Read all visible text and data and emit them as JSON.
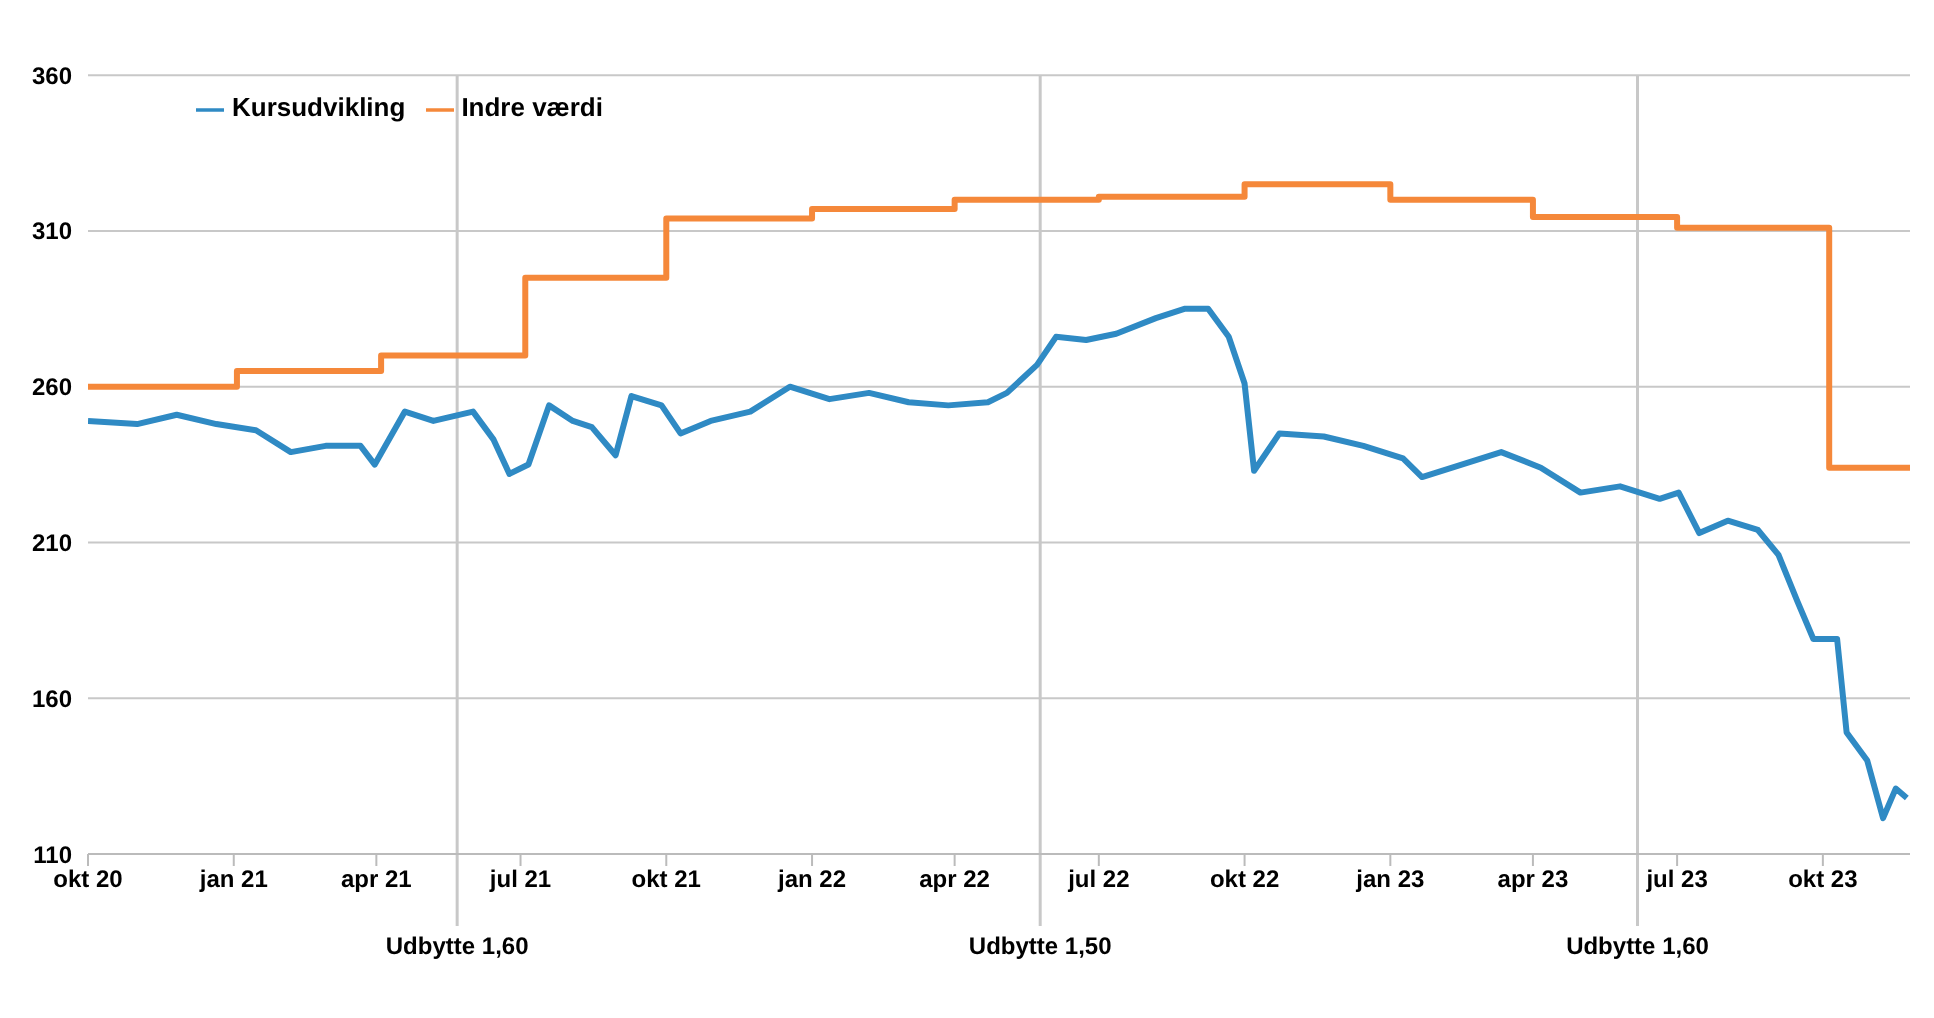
{
  "chart_data": {
    "type": "line",
    "xlim": [
      "2020-10-01",
      "2023-11-25"
    ],
    "xticks": [
      {
        "value": "2020-10-01",
        "label": "okt 20"
      },
      {
        "value": "2021-01-01",
        "label": "jan 21"
      },
      {
        "value": "2021-04-01",
        "label": "apr 21"
      },
      {
        "value": "2021-07-01",
        "label": "jul 21"
      },
      {
        "value": "2021-10-01",
        "label": "okt 21"
      },
      {
        "value": "2022-01-01",
        "label": "jan 22"
      },
      {
        "value": "2022-04-01",
        "label": "apr 22"
      },
      {
        "value": "2022-07-01",
        "label": "jul 22"
      },
      {
        "value": "2022-10-01",
        "label": "okt 22"
      },
      {
        "value": "2023-01-01",
        "label": "jan 23"
      },
      {
        "value": "2023-04-01",
        "label": "apr 23"
      },
      {
        "value": "2023-07-01",
        "label": "jul 23"
      },
      {
        "value": "2023-10-01",
        "label": "okt 23"
      }
    ],
    "ylim": [
      110,
      360
    ],
    "yticks": [
      110,
      160,
      210,
      260,
      310,
      360
    ],
    "grid": "y",
    "legend": "top left",
    "marker": "none",
    "line_style": "solid",
    "series": [
      {
        "name": "Kursudvikling",
        "color": "#2f8ac4",
        "x": [
          "2020-10-01",
          "2020-11-01",
          "2020-11-26",
          "2020-12-21",
          "2021-01-15",
          "2021-02-06",
          "2021-02-28",
          "2021-03-22",
          "2021-03-31",
          "2021-04-19",
          "2021-05-07",
          "2021-06-01",
          "2021-06-14",
          "2021-06-24",
          "2021-07-06",
          "2021-07-19",
          "2021-08-03",
          "2021-08-15",
          "2021-08-30",
          "2021-09-09",
          "2021-09-28",
          "2021-10-10",
          "2021-10-29",
          "2021-11-23",
          "2021-12-18",
          "2022-01-12",
          "2022-02-06",
          "2022-03-03",
          "2022-03-28",
          "2022-04-22",
          "2022-05-04",
          "2022-05-23",
          "2022-06-04",
          "2022-06-23",
          "2022-07-12",
          "2022-08-06",
          "2022-08-24",
          "2022-09-08",
          "2022-09-21",
          "2022-10-01",
          "2022-10-07",
          "2022-10-23",
          "2022-11-20",
          "2022-12-15",
          "2023-01-09",
          "2023-01-21",
          "2023-02-15",
          "2023-03-12",
          "2023-04-06",
          "2023-05-01",
          "2023-05-26",
          "2023-06-20",
          "2023-07-02",
          "2023-07-15",
          "2023-08-02",
          "2023-08-21",
          "2023-09-03",
          "2023-09-15",
          "2023-09-25",
          "2023-10-10",
          "2023-10-16",
          "2023-10-29",
          "2023-11-08",
          "2023-11-16",
          "2023-11-23"
        ],
        "values": [
          249,
          248,
          251,
          248,
          246,
          239,
          241,
          241,
          235,
          252,
          249,
          252,
          243,
          232,
          235,
          254,
          249,
          247,
          238,
          257,
          254,
          245,
          249,
          252,
          260,
          256,
          258,
          255,
          254,
          255,
          258,
          267,
          276,
          275,
          277,
          282,
          285,
          285,
          276,
          261,
          233,
          245,
          244,
          241,
          237,
          231,
          235,
          239,
          234,
          226,
          228,
          224,
          226,
          213,
          217,
          214,
          206,
          191,
          179,
          179,
          149,
          140,
          121.5,
          131,
          128
        ]
      },
      {
        "name": "Indre værdi",
        "color": "#f5883a",
        "type": "step",
        "x": [
          "2020-10-01",
          "2021-01-03",
          "2021-04-04",
          "2021-07-04",
          "2021-10-01",
          "2022-01-01",
          "2022-04-01",
          "2022-07-01",
          "2022-10-01",
          "2023-01-01",
          "2023-04-01",
          "2023-07-01",
          "2023-10-05",
          "2023-11-25"
        ],
        "values": [
          260,
          265,
          270,
          295,
          314,
          317,
          320,
          321,
          325,
          320,
          314.5,
          311,
          234,
          234
        ]
      }
    ],
    "ref_lines": [
      {
        "axis": "x",
        "value": "2021-05-22",
        "label": "Udbytte 1,60",
        "color": "#c8c8c8"
      },
      {
        "axis": "x",
        "value": "2022-05-25",
        "label": "Udbytte 1,50",
        "color": "#c8c8c8"
      },
      {
        "axis": "x",
        "value": "2023-06-06",
        "label": "Udbytte 1,60",
        "color": "#c8c8c8"
      }
    ]
  }
}
